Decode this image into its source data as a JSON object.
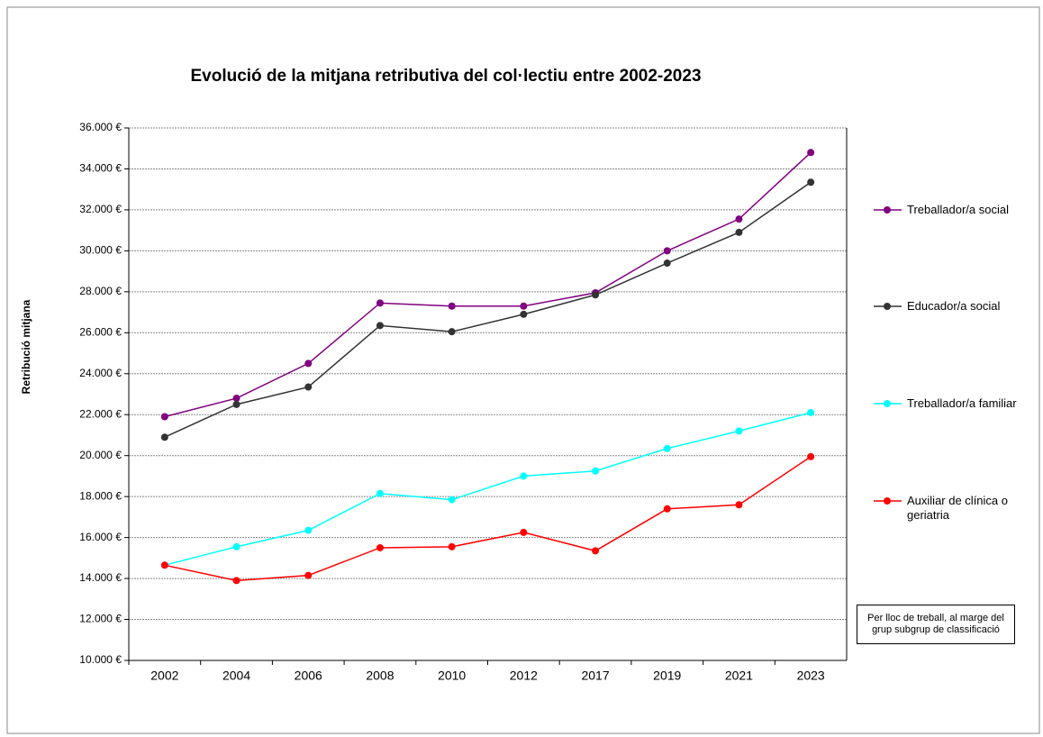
{
  "chart_data": {
    "type": "line",
    "title": "Evolució de la mitjana retributiva del col·lectiu entre 2002-2023",
    "y_label": "Retribució mitjana",
    "annotation": "Per lloc de treball, al marge del grup subgrup de classificació",
    "categories": [
      "2002",
      "2004",
      "2006",
      "2008",
      "2010",
      "2012",
      "2017",
      "2019",
      "2021",
      "2023"
    ],
    "series": [
      {
        "name": "Treballador/a social",
        "color": "#800080",
        "values": [
          21900,
          22800,
          24500,
          27450,
          27300,
          27300,
          27950,
          30000,
          31550,
          34800
        ]
      },
      {
        "name": "Educador/a social",
        "color": "#333333",
        "values": [
          20900,
          22500,
          23350,
          26350,
          26050,
          26900,
          27850,
          29400,
          30900,
          33350
        ]
      },
      {
        "name": "Treballador/a familiar",
        "color": "#00ffff",
        "values": [
          14650,
          15550,
          16350,
          18150,
          17850,
          19000,
          19250,
          20350,
          21200,
          22100
        ]
      },
      {
        "name": "Auxiliar de clínica o geriatria",
        "color": "#ff0000",
        "values": [
          14650,
          13900,
          14150,
          15500,
          15550,
          16250,
          15350,
          17400,
          17600,
          19950
        ]
      }
    ],
    "ylim": [
      10000,
      36000
    ],
    "yticks": [
      {
        "value": 10000,
        "label": "10.000 €"
      },
      {
        "value": 12000,
        "label": "12.000 €"
      },
      {
        "value": 14000,
        "label": "14.000 €"
      },
      {
        "value": 16000,
        "label": "16.000 €"
      },
      {
        "value": 18000,
        "label": "18.000 €"
      },
      {
        "value": 20000,
        "label": "20.000 €"
      },
      {
        "value": 22000,
        "label": "22.000 €"
      },
      {
        "value": 24000,
        "label": "24.000 €"
      },
      {
        "value": 26000,
        "label": "26.000 €"
      },
      {
        "value": 28000,
        "label": "28.000 €"
      },
      {
        "value": 30000,
        "label": "30.000 €"
      },
      {
        "value": 32000,
        "label": "32.000 €"
      },
      {
        "value": 34000,
        "label": "34.000 €"
      },
      {
        "value": 36000,
        "label": "36.000 €"
      }
    ],
    "grid": true
  }
}
